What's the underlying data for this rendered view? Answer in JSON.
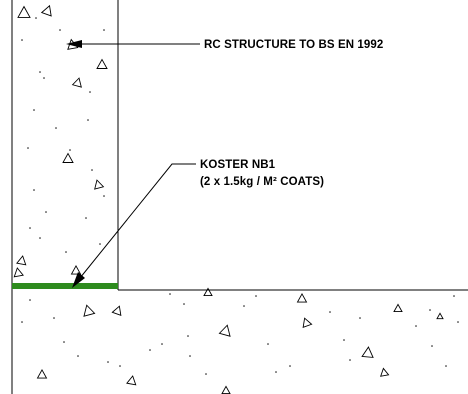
{
  "labels": {
    "structure": "RC STRUCTURE TO BS EN 1992",
    "product_line1": "KOSTER NB1",
    "product_line2": "(2 x 1.5kg / M² COATS)"
  },
  "colors": {
    "line": "#000000",
    "membrane": "#2e8b1e",
    "background": "#ffffff"
  }
}
